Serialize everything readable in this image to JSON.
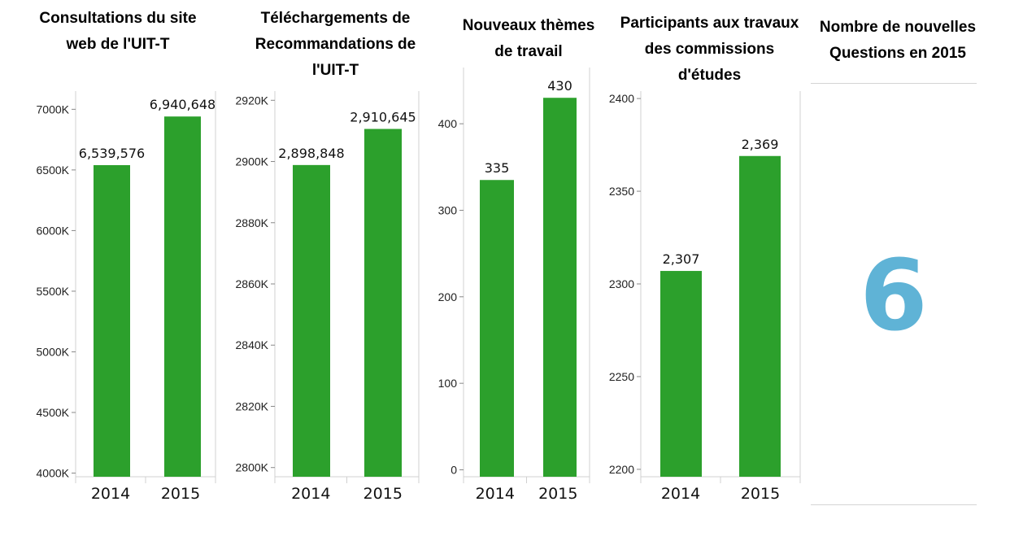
{
  "colors": {
    "bar": "#2ca02c",
    "kpi": "#5fb3d6",
    "axis": "#d0d0d0",
    "tick_text": "#222222"
  },
  "chart_data": [
    {
      "type": "bar",
      "title": "Consultations du site web de l'UIT-T",
      "categories": [
        "2014",
        "2015"
      ],
      "values": [
        6539576,
        6940648
      ],
      "value_labels": [
        "6,539,576",
        "6,940,648"
      ],
      "ylim": [
        3970000,
        7150000
      ],
      "yticks": [
        4000000,
        4500000,
        5000000,
        5500000,
        6000000,
        6500000,
        7000000
      ],
      "ytick_labels": [
        "4000K",
        "4500K",
        "5000K",
        "5500K",
        "6000K",
        "6500K",
        "7000K"
      ],
      "xlabel": "",
      "ylabel": "",
      "grid": false
    },
    {
      "type": "bar",
      "title": "Téléchargements de Recommandations de l'UIT-T",
      "categories": [
        "2014",
        "2015"
      ],
      "values": [
        2898848,
        2910645
      ],
      "value_labels": [
        "2,898,848",
        "2,910,645"
      ],
      "ylim": [
        2797000,
        2923000
      ],
      "yticks": [
        2800000,
        2820000,
        2840000,
        2860000,
        2880000,
        2900000,
        2920000
      ],
      "ytick_labels": [
        "2800K",
        "2820K",
        "2840K",
        "2860K",
        "2880K",
        "2900K",
        "2920K"
      ],
      "xlabel": "",
      "ylabel": "",
      "grid": false
    },
    {
      "type": "bar",
      "title": "Nouveaux thèmes de travail",
      "categories": [
        "2014",
        "2015"
      ],
      "values": [
        335,
        430
      ],
      "value_labels": [
        "335",
        "430"
      ],
      "ylim": [
        -8,
        465
      ],
      "yticks": [
        0,
        100,
        200,
        300,
        400
      ],
      "ytick_labels": [
        "0",
        "100",
        "200",
        "300",
        "400"
      ],
      "xlabel": "",
      "ylabel": "",
      "grid": false
    },
    {
      "type": "bar",
      "title": "Participants aux travaux des commissions d'études",
      "categories": [
        "2014",
        "2015"
      ],
      "values": [
        2307,
        2369
      ],
      "value_labels": [
        "2,307",
        "2,369"
      ],
      "ylim": [
        2196,
        2404
      ],
      "yticks": [
        2200,
        2250,
        2300,
        2350,
        2400
      ],
      "ytick_labels": [
        "2200",
        "2250",
        "2300",
        "2350",
        "2400"
      ],
      "xlabel": "",
      "ylabel": "",
      "grid": false
    }
  ],
  "kpi": {
    "title": "Nombre de nouvelles Questions en 2015",
    "value": "6"
  }
}
